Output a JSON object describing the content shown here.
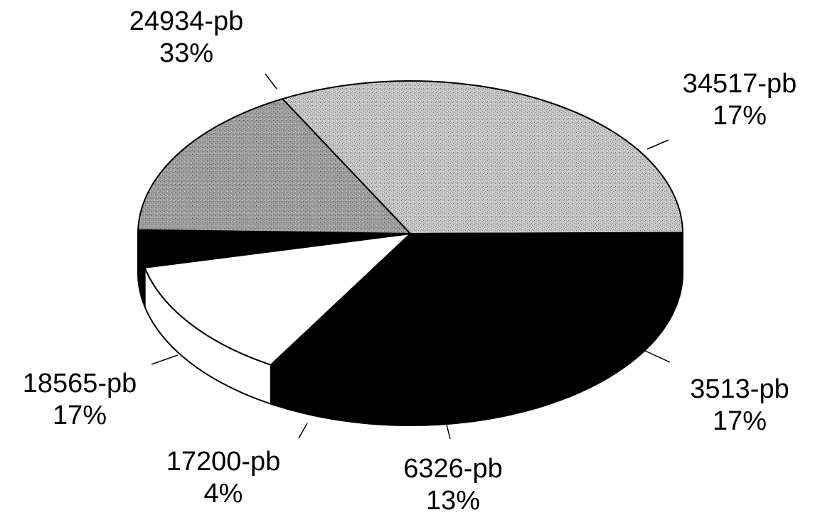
{
  "chart_data": {
    "type": "pie",
    "style": "3d",
    "slices": [
      {
        "label": "24934-pb",
        "percent_label": "33%",
        "value": 33,
        "color": "#bdbdbd",
        "pattern": "speckle"
      },
      {
        "label": "34517-pb",
        "percent_label": "17%",
        "value": 17,
        "color": "#000000",
        "pattern": "solid"
      },
      {
        "label": "3513-pb",
        "percent_label": "17%",
        "value": 17,
        "color": "#000000",
        "pattern": "solid"
      },
      {
        "label": "6326-pb",
        "percent_label": "13%",
        "value": 13,
        "color": "#ffffff",
        "pattern": "solid"
      },
      {
        "label": "17200-pb",
        "percent_label": "4%",
        "value": 4,
        "color": "#000000",
        "pattern": "solid"
      },
      {
        "label": "18565-pb",
        "percent_label": "17%",
        "value": 17,
        "color": "#9a9a9a",
        "pattern": "speckle"
      }
    ]
  }
}
